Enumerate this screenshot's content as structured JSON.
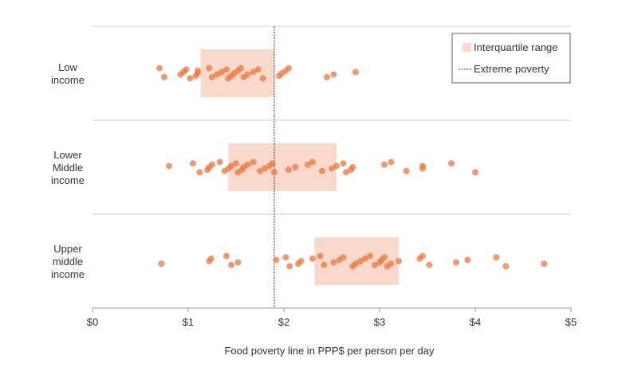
{
  "chart_data": {
    "type": "scatter",
    "xlabel": "Food poverty line in PPP$ per person per day",
    "xlim": [
      0,
      5
    ],
    "x_ticks": [
      {
        "value": 0,
        "label": "$0"
      },
      {
        "value": 1,
        "label": "$1"
      },
      {
        "value": 2,
        "label": "$2"
      },
      {
        "value": 3,
        "label": "$3"
      },
      {
        "value": 4,
        "label": "$4"
      },
      {
        "value": 5,
        "label": "$5"
      }
    ],
    "reference_line": {
      "label": "Extreme poverty",
      "x": 1.9
    },
    "legend": {
      "placement": "top-right",
      "items": [
        {
          "label": "Interquartile range",
          "kind": "band"
        },
        {
          "label": "Extreme poverty",
          "kind": "dashed-line"
        }
      ]
    },
    "colors": {
      "point": "#e8773f",
      "iqr": "#f9d9cb",
      "reference": "#333333",
      "grid": "#cccccc"
    },
    "groups": [
      {
        "label_lines": [
          "Low",
          "income"
        ],
        "iqr": [
          1.13,
          1.9
        ],
        "points": [
          0.7,
          0.75,
          0.92,
          0.95,
          0.98,
          1.02,
          1.08,
          1.1,
          1.1,
          1.22,
          1.25,
          1.3,
          1.35,
          1.4,
          1.42,
          1.45,
          1.48,
          1.52,
          1.55,
          1.58,
          1.62,
          1.68,
          1.73,
          1.78,
          1.95,
          1.98,
          2.02,
          2.05,
          2.45,
          2.52,
          2.75
        ]
      },
      {
        "label_lines": [
          "Lower",
          "Middle",
          "income"
        ],
        "iqr": [
          1.42,
          2.55
        ],
        "points": [
          0.8,
          1.05,
          1.12,
          1.2,
          1.22,
          1.25,
          1.33,
          1.38,
          1.42,
          1.45,
          1.5,
          1.52,
          1.56,
          1.58,
          1.62,
          1.68,
          1.75,
          1.8,
          1.85,
          1.88,
          1.9,
          2.05,
          2.12,
          2.25,
          2.3,
          2.4,
          2.5,
          2.55,
          2.62,
          2.65,
          2.7,
          2.72,
          3.05,
          3.12,
          3.28,
          3.45,
          3.45,
          3.75,
          4.0
        ]
      },
      {
        "label_lines": [
          "Upper",
          "middle",
          "income"
        ],
        "iqr": [
          2.32,
          3.2
        ],
        "points": [
          0.72,
          1.22,
          1.24,
          1.4,
          1.45,
          1.52,
          1.92,
          2.02,
          2.06,
          2.15,
          2.18,
          2.3,
          2.38,
          2.42,
          2.52,
          2.58,
          2.62,
          2.72,
          2.75,
          2.8,
          2.85,
          2.9,
          2.95,
          3.0,
          3.02,
          3.05,
          3.08,
          3.12,
          3.2,
          3.42,
          3.45,
          3.52,
          3.8,
          3.92,
          4.22,
          4.32,
          4.72
        ]
      }
    ]
  }
}
